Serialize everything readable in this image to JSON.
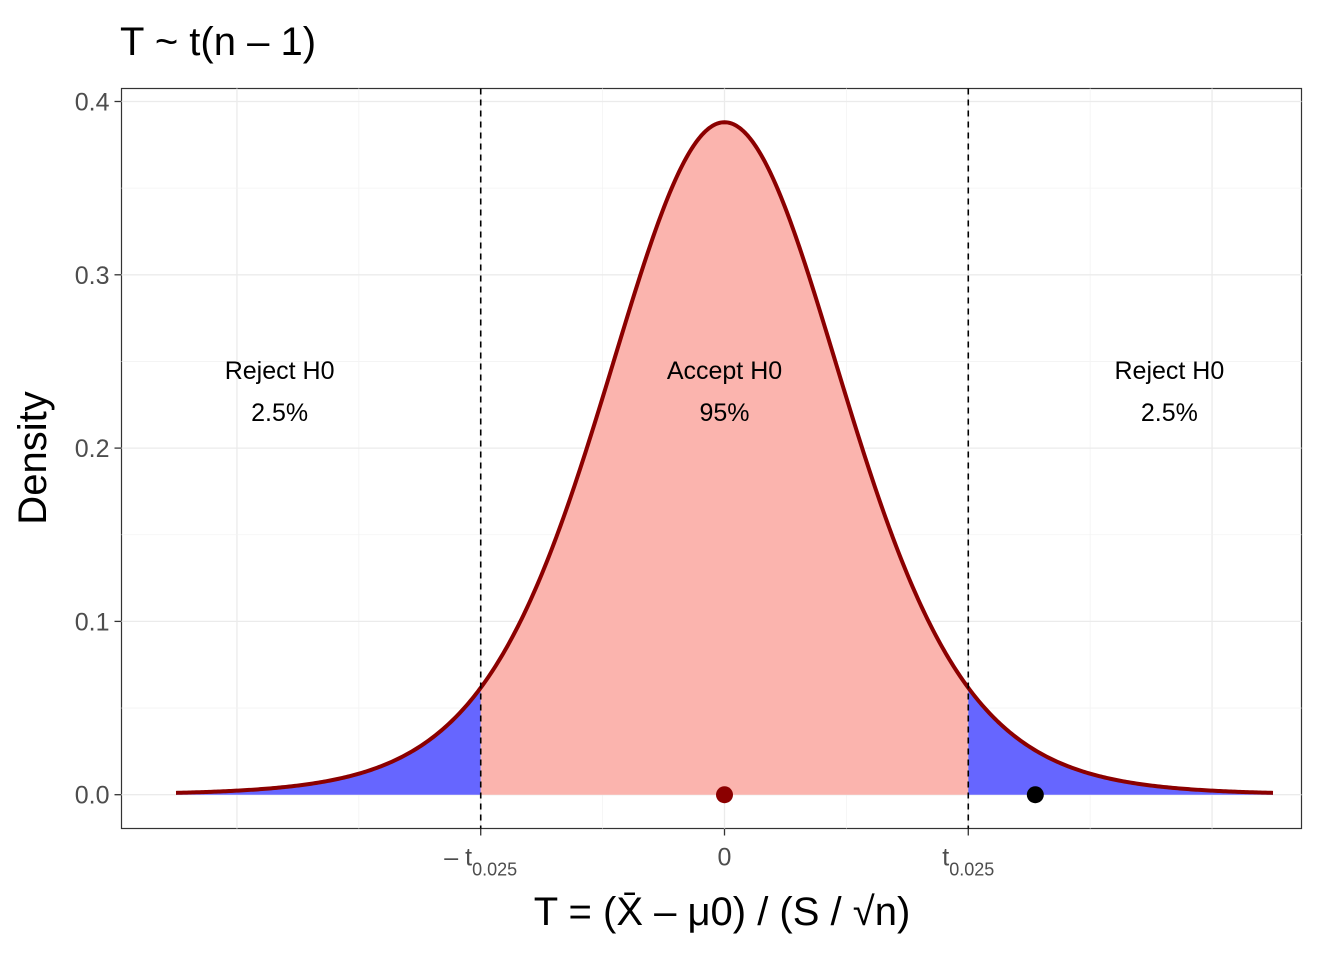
{
  "chart_data": {
    "type": "area",
    "title": "T ~ t(n – 1)",
    "xlabel": "T = (X̄ – μ0) / (S / √n)",
    "ylabel": "Density",
    "ylim": [
      -0.0195,
      0.4075
    ],
    "xlim": [
      -4.5,
      4.5
    ],
    "x_ticks": [
      {
        "value": -2.0,
        "label": "– t",
        "sub": "0.025"
      },
      {
        "value": 0.0,
        "label": "0",
        "sub": ""
      },
      {
        "value": 2.0,
        "label": "t",
        "sub": "0.025"
      }
    ],
    "y_ticks": [
      {
        "value": 0.0,
        "label": "0.0"
      },
      {
        "value": 0.1,
        "label": "0.1"
      },
      {
        "value": 0.2,
        "label": "0.2"
      },
      {
        "value": 0.3,
        "label": "0.3"
      },
      {
        "value": 0.4,
        "label": "0.4"
      }
    ],
    "grid": true,
    "distribution": {
      "name": "t",
      "df": 9,
      "x_range": [
        -4.5,
        4.5
      ]
    },
    "critical_values": [
      -2.0,
      2.0
    ],
    "regions": [
      {
        "name": "left-rejection",
        "from": -4.5,
        "to": -2.0,
        "color": "#6666ff"
      },
      {
        "name": "acceptance",
        "from": -2.0,
        "to": 2.0,
        "color": "#fbb4ae"
      },
      {
        "name": "right-rejection",
        "from": 2.0,
        "to": 4.5,
        "color": "#6666ff"
      }
    ],
    "annotations": [
      {
        "lines": [
          "Reject H0",
          "2.5%"
        ],
        "x": -3.65,
        "y": 0.24
      },
      {
        "lines": [
          "Accept H0",
          "95%"
        ],
        "x": 0.0,
        "y": 0.24
      },
      {
        "lines": [
          "Reject H0",
          "2.5%"
        ],
        "x": 3.65,
        "y": 0.24
      }
    ],
    "points": [
      {
        "x": 0.0,
        "y": 0.0,
        "color": "#8b0000"
      },
      {
        "x": 2.55,
        "y": 0.0,
        "color": "#000000"
      }
    ],
    "curve_color": "#8b0000"
  }
}
